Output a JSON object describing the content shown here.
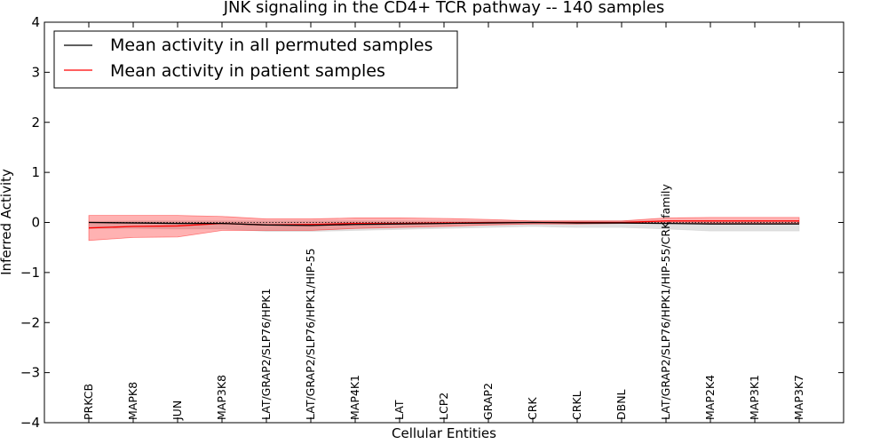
{
  "chart_data": {
    "type": "line",
    "title": "JNK signaling in the CD4+ TCR pathway -- 140 samples",
    "xlabel": "Cellular Entities",
    "ylabel": "Inferred Activity",
    "ylim": [
      -4,
      4
    ],
    "yticks": [
      4,
      3,
      2,
      1,
      0,
      -1,
      -2,
      -3,
      -4
    ],
    "ytick_labels": [
      "4",
      "3",
      "2",
      "1",
      "0",
      "−1",
      "−2",
      "−3",
      "−4"
    ],
    "categories": [
      "PRKCB",
      "MAPK8",
      "JUN",
      "MAP3K8",
      "LAT/GRAP2/SLP76/HPK1",
      "LAT/GRAP2/SLP76/HPK1/HIP-55",
      "MAP4K1",
      "LAT",
      "LCP2",
      "GRAP2",
      "CRK",
      "CRKL",
      "DBNL",
      "LAT/GRAP2/SLP76/HPK1/HIP-55/CRK family",
      "MAP2K4",
      "MAP3K1",
      "MAP3K7"
    ],
    "series": [
      {
        "name": "Mean activity in all permuted samples",
        "color": "#000000",
        "values": [
          0.0,
          -0.01,
          -0.02,
          -0.02,
          -0.05,
          -0.06,
          -0.04,
          -0.03,
          -0.02,
          -0.01,
          0.0,
          -0.01,
          -0.01,
          -0.02,
          -0.03,
          -0.03,
          -0.03
        ],
        "band_upper": [
          0.02,
          0.03,
          0.03,
          0.03,
          0.03,
          0.03,
          0.03,
          0.03,
          0.03,
          0.03,
          0.03,
          0.03,
          0.03,
          0.03,
          0.03,
          0.03,
          0.03
        ],
        "band_lower": [
          -0.12,
          -0.12,
          -0.13,
          -0.13,
          -0.18,
          -0.18,
          -0.16,
          -0.14,
          -0.12,
          -0.1,
          -0.08,
          -0.1,
          -0.1,
          -0.13,
          -0.17,
          -0.17,
          -0.17
        ],
        "band_color": "#cccccc"
      },
      {
        "name": "Mean activity in patient samples",
        "color": "#ff0000",
        "values": [
          -0.11,
          -0.08,
          -0.07,
          -0.02,
          -0.05,
          -0.04,
          -0.02,
          -0.02,
          -0.01,
          0.0,
          0.0,
          0.0,
          0.0,
          0.03,
          0.03,
          0.03,
          0.03
        ],
        "band_upper": [
          0.14,
          0.14,
          0.14,
          0.12,
          0.07,
          0.07,
          0.09,
          0.09,
          0.08,
          0.06,
          0.03,
          0.03,
          0.03,
          0.09,
          0.1,
          0.1,
          0.1
        ],
        "band_lower": [
          -0.36,
          -0.3,
          -0.29,
          -0.16,
          -0.16,
          -0.16,
          -0.12,
          -0.1,
          -0.08,
          -0.05,
          -0.03,
          -0.03,
          -0.02,
          -0.02,
          -0.02,
          -0.02,
          -0.02
        ],
        "band_color": "#ff0000"
      }
    ],
    "dotted_reference_y": 0,
    "legend_position": "top-left"
  }
}
